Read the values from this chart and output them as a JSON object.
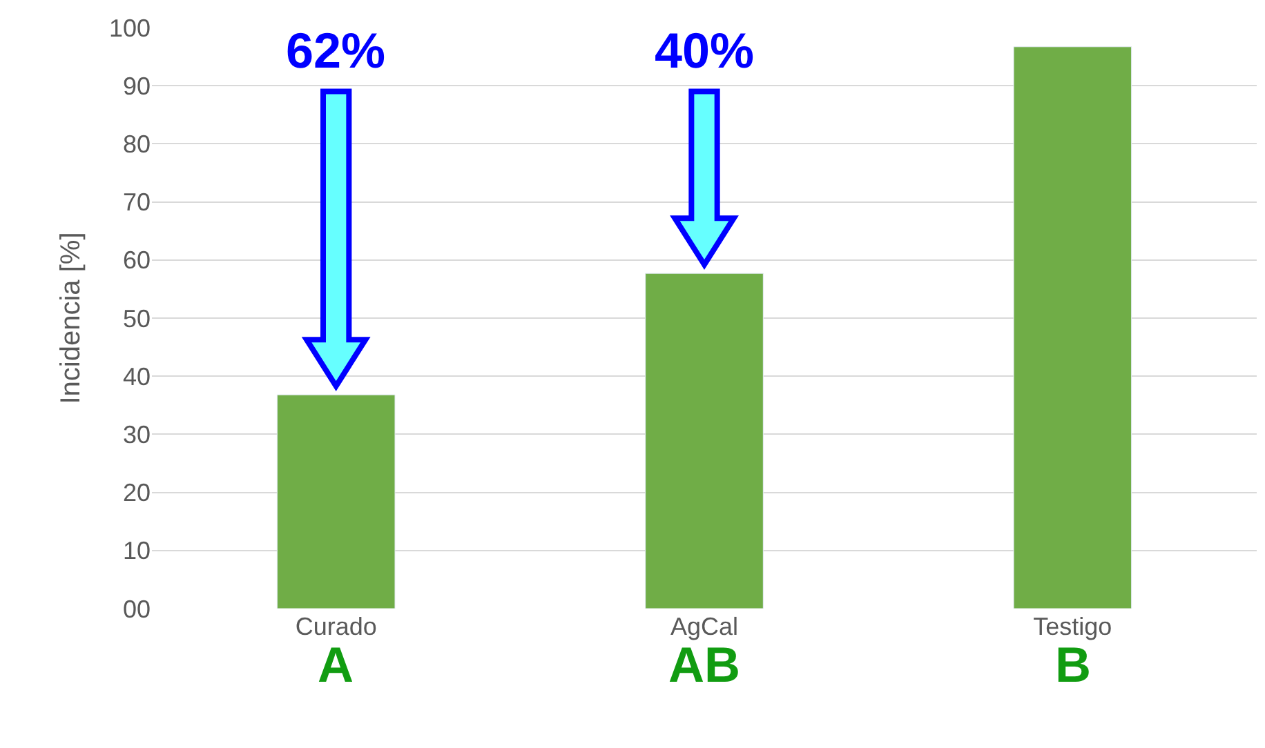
{
  "chart_data": {
    "type": "bar",
    "ylabel": "Incidencia [%]",
    "categories": [
      "Curado",
      "AgCal",
      "Testigo"
    ],
    "values": [
      36.8,
      57.7,
      96.7
    ],
    "color": "#70ad47",
    "ylim": [
      0,
      100
    ],
    "yticks": [
      {
        "value": 0,
        "label": "00"
      },
      10,
      20,
      30,
      40,
      50,
      60,
      70,
      80,
      90,
      100
    ],
    "grid": "y",
    "annotations": [
      "62%",
      "40%",
      "A",
      "AB",
      "B"
    ]
  }
}
